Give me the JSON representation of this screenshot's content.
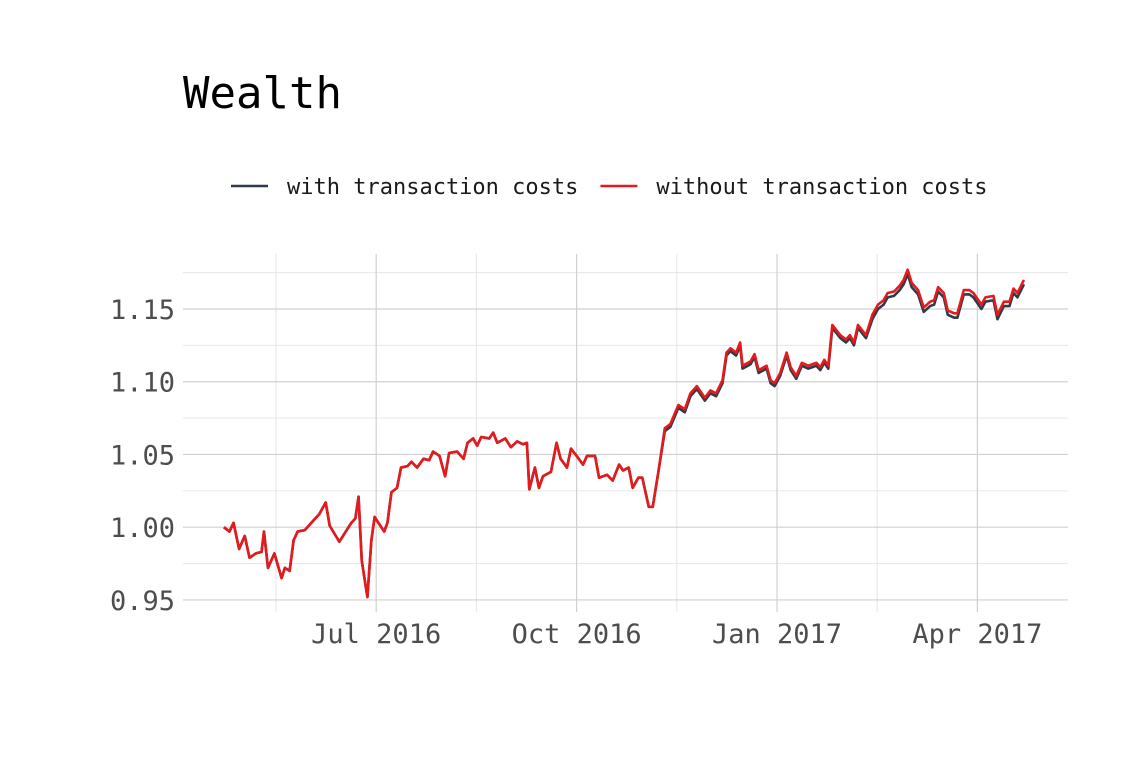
{
  "chart_data": {
    "type": "line",
    "title": "Wealth",
    "x": [
      2016.31,
      2016.317,
      2016.322,
      2016.329,
      2016.336,
      2016.342,
      2016.35,
      2016.357,
      2016.36,
      2016.365,
      2016.373,
      2016.382,
      2016.386,
      2016.392,
      2016.397,
      2016.402,
      2016.411,
      2016.419,
      2016.429,
      2016.437,
      2016.442,
      2016.454,
      2016.469,
      2016.474,
      2016.478,
      2016.482,
      2016.489,
      2016.494,
      2016.498,
      2016.51,
      2016.514,
      2016.519,
      2016.526,
      2016.531,
      2016.539,
      2016.544,
      2016.551,
      2016.559,
      2016.566,
      2016.571,
      2016.579,
      2016.586,
      2016.591,
      2016.601,
      2016.609,
      2016.614,
      2016.621,
      2016.626,
      2016.631,
      2016.641,
      2016.646,
      2016.651,
      2016.661,
      2016.668,
      2016.676,
      2016.683,
      2016.688,
      2016.691,
      2016.698,
      2016.703,
      2016.708,
      2016.718,
      2016.725,
      2016.73,
      2016.738,
      2016.743,
      2016.75,
      2016.758,
      2016.763,
      2016.773,
      2016.778,
      2016.788,
      2016.795,
      2016.803,
      2016.808,
      2016.815,
      2016.82,
      2016.827,
      2016.832,
      2016.84,
      2016.845,
      2016.852,
      2016.86,
      2016.867,
      2016.877,
      2016.885,
      2016.892,
      2016.9,
      2016.91,
      2016.917,
      2016.924,
      2016.932,
      2016.937,
      2016.942,
      2016.949,
      2016.954,
      2016.957,
      2016.967,
      2016.972,
      2016.977,
      2016.987,
      2016.992,
      2016.997,
      2017.004,
      2017.012,
      2017.017,
      2017.024,
      2017.031,
      2017.039,
      2017.049,
      2017.054,
      2017.059,
      2017.064,
      2017.069,
      2017.079,
      2017.086,
      2017.091,
      2017.096,
      2017.101,
      2017.111,
      2017.119,
      2017.126,
      2017.133,
      2017.138,
      2017.146,
      2017.153,
      2017.158,
      2017.163,
      2017.168,
      2017.176,
      2017.183,
      2017.191,
      2017.196,
      2017.201,
      2017.208,
      2017.213,
      2017.221,
      2017.225,
      2017.233,
      2017.24,
      2017.245,
      2017.255,
      2017.26,
      2017.27,
      2017.275,
      2017.283,
      2017.29,
      2017.295,
      2017.3,
      2017.308
    ],
    "series": [
      {
        "name": "with transaction costs",
        "color": "#2f3b4c",
        "values": [
          1.0,
          0.997,
          1.003,
          0.985,
          0.994,
          0.979,
          0.982,
          0.983,
          0.997,
          0.972,
          0.982,
          0.965,
          0.972,
          0.97,
          0.991,
          0.997,
          0.998,
          1.003,
          1.009,
          1.017,
          1.001,
          0.99,
          1.003,
          1.006,
          1.021,
          0.977,
          0.952,
          0.991,
          1.007,
          0.997,
          1.003,
          1.024,
          1.027,
          1.041,
          1.042,
          1.045,
          1.041,
          1.047,
          1.046,
          1.052,
          1.049,
          1.035,
          1.051,
          1.052,
          1.047,
          1.058,
          1.061,
          1.056,
          1.062,
          1.061,
          1.065,
          1.058,
          1.061,
          1.055,
          1.059,
          1.057,
          1.058,
          1.026,
          1.041,
          1.027,
          1.035,
          1.038,
          1.058,
          1.047,
          1.041,
          1.054,
          1.049,
          1.043,
          1.049,
          1.049,
          1.034,
          1.036,
          1.032,
          1.043,
          1.039,
          1.041,
          1.027,
          1.034,
          1.034,
          1.014,
          1.014,
          1.038,
          1.066,
          1.069,
          1.082,
          1.079,
          1.09,
          1.095,
          1.087,
          1.092,
          1.09,
          1.099,
          1.118,
          1.121,
          1.118,
          1.125,
          1.109,
          1.112,
          1.117,
          1.106,
          1.109,
          1.099,
          1.097,
          1.104,
          1.118,
          1.108,
          1.102,
          1.111,
          1.109,
          1.111,
          1.108,
          1.113,
          1.109,
          1.137,
          1.13,
          1.127,
          1.13,
          1.125,
          1.137,
          1.13,
          1.143,
          1.15,
          1.153,
          1.158,
          1.159,
          1.163,
          1.167,
          1.174,
          1.165,
          1.16,
          1.148,
          1.152,
          1.153,
          1.162,
          1.158,
          1.146,
          1.144,
          1.144,
          1.16,
          1.16,
          1.158,
          1.15,
          1.155,
          1.156,
          1.143,
          1.152,
          1.152,
          1.161,
          1.158,
          1.167
        ]
      },
      {
        "name": "without transaction costs",
        "color": "#e41a1c",
        "values": [
          1.0,
          0.997,
          1.003,
          0.985,
          0.994,
          0.979,
          0.982,
          0.983,
          0.997,
          0.972,
          0.982,
          0.965,
          0.972,
          0.97,
          0.991,
          0.997,
          0.998,
          1.003,
          1.009,
          1.017,
          1.001,
          0.99,
          1.003,
          1.006,
          1.021,
          0.977,
          0.952,
          0.991,
          1.007,
          0.997,
          1.003,
          1.024,
          1.027,
          1.041,
          1.042,
          1.045,
          1.041,
          1.047,
          1.046,
          1.052,
          1.049,
          1.035,
          1.051,
          1.052,
          1.047,
          1.058,
          1.061,
          1.056,
          1.062,
          1.061,
          1.065,
          1.058,
          1.061,
          1.055,
          1.059,
          1.057,
          1.058,
          1.026,
          1.041,
          1.027,
          1.035,
          1.038,
          1.058,
          1.047,
          1.041,
          1.054,
          1.049,
          1.043,
          1.049,
          1.049,
          1.034,
          1.036,
          1.032,
          1.043,
          1.039,
          1.041,
          1.027,
          1.034,
          1.034,
          1.014,
          1.014,
          1.038,
          1.068,
          1.071,
          1.084,
          1.081,
          1.092,
          1.097,
          1.089,
          1.094,
          1.092,
          1.101,
          1.12,
          1.123,
          1.12,
          1.127,
          1.111,
          1.114,
          1.119,
          1.108,
          1.111,
          1.101,
          1.099,
          1.106,
          1.12,
          1.11,
          1.104,
          1.113,
          1.111,
          1.113,
          1.11,
          1.115,
          1.111,
          1.139,
          1.132,
          1.129,
          1.132,
          1.127,
          1.139,
          1.132,
          1.146,
          1.153,
          1.156,
          1.161,
          1.162,
          1.166,
          1.17,
          1.177,
          1.168,
          1.163,
          1.151,
          1.155,
          1.156,
          1.165,
          1.161,
          1.149,
          1.147,
          1.147,
          1.163,
          1.163,
          1.161,
          1.153,
          1.158,
          1.159,
          1.146,
          1.155,
          1.155,
          1.164,
          1.161,
          1.17
        ]
      }
    ],
    "xlim": [
      2016.259,
      2017.363
    ],
    "xticks": [
      {
        "value": 2016.5,
        "label": "Jul 2016"
      },
      {
        "value": 2016.75,
        "label": "Oct 2016"
      },
      {
        "value": 2017.0,
        "label": "Jan 2017"
      },
      {
        "value": 2017.25,
        "label": "Apr 2017"
      }
    ],
    "ylim": [
      0.9417,
      1.1878
    ],
    "yticks": [
      {
        "value": 0.95,
        "label": "0.95"
      },
      {
        "value": 1.0,
        "label": "1.00"
      },
      {
        "value": 1.05,
        "label": "1.05"
      },
      {
        "value": 1.1,
        "label": "1.10"
      },
      {
        "value": 1.15,
        "label": "1.15"
      }
    ],
    "grid": true,
    "legend": "top"
  }
}
